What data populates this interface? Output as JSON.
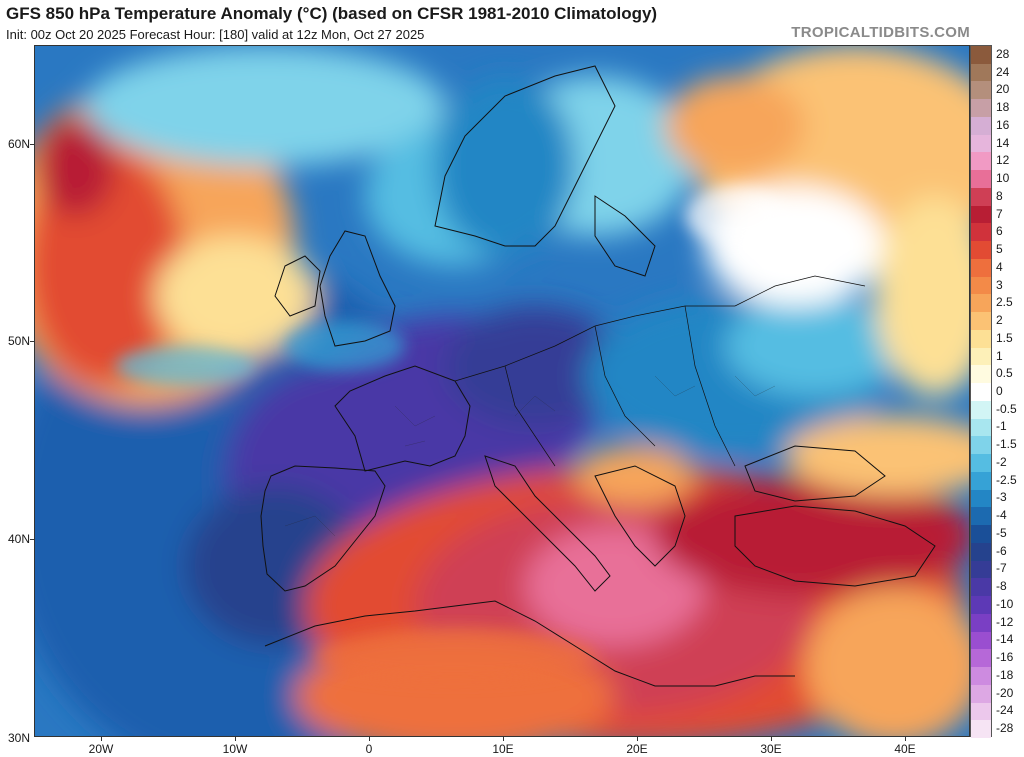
{
  "header": {
    "title": "GFS 850 hPa Temperature Anomaly (°C) (based on CFSR 1981-2010 Climatology)",
    "subtitle": "Init: 00z Oct 20 2025   Forecast Hour: [180]   valid at 12z Mon, Oct 27 2025",
    "brand": "TROPICALTIDBITS.COM"
  },
  "axes": {
    "lat_labels": [
      "60N",
      "50N",
      "40N",
      "30N"
    ],
    "lon_labels": [
      "20W",
      "10W",
      "0",
      "10E",
      "20E",
      "30E",
      "40E"
    ]
  },
  "colorbar": {
    "labels": [
      "28",
      "24",
      "20",
      "18",
      "16",
      "14",
      "12",
      "10",
      "8",
      "7",
      "6",
      "5",
      "4",
      "3",
      "2.5",
      "2",
      "1.5",
      "1",
      "0.5",
      "0",
      "-0.5",
      "-1",
      "-1.5",
      "-2",
      "-2.5",
      "-3",
      "-4",
      "-5",
      "-6",
      "-7",
      "-8",
      "-10",
      "-12",
      "-14",
      "-16",
      "-18",
      "-20",
      "-24",
      "-28"
    ],
    "colors": [
      "#8b5a3c",
      "#a0785a",
      "#b48f7c",
      "#c79fa6",
      "#d5aed4",
      "#e6b5dc",
      "#f19ac4",
      "#e86f98",
      "#cf3f55",
      "#b81e34",
      "#d0323b",
      "#e24b33",
      "#ee6f3d",
      "#f38a48",
      "#f7a55a",
      "#fbc274",
      "#fde095",
      "#fdf0b8",
      "#fffbe0",
      "#ffffff",
      "#d2f5f5",
      "#a8e6ef",
      "#7fd3ea",
      "#55bde2",
      "#36a2d6",
      "#2386c5",
      "#1c6ab0",
      "#1a4f98",
      "#25428d",
      "#353c96",
      "#4a39a6",
      "#5d39b6",
      "#7a3fc4",
      "#9a4ed0",
      "#b668d8",
      "#cd8be0",
      "#dda8e4",
      "#ecc8ec",
      "#f6e4f4"
    ]
  }
}
